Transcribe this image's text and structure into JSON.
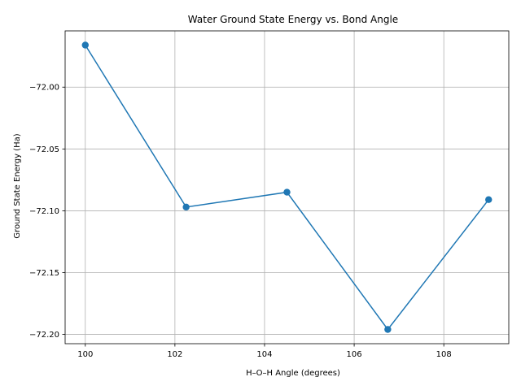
{
  "chart_data": {
    "type": "line",
    "title": "Water Ground State Energy vs. Bond Angle",
    "xlabel": "H–O–H Angle (degrees)",
    "ylabel": "Ground State Energy (Ha)",
    "x": [
      100.0,
      102.25,
      104.5,
      106.75,
      109.0
    ],
    "series": [
      {
        "values": [
          -71.966,
          -72.097,
          -72.085,
          -72.196,
          -72.091
        ]
      }
    ],
    "xlim": [
      99.55,
      109.45
    ],
    "ylim": [
      -72.2075,
      -71.9545
    ],
    "xticks": [
      100,
      102,
      104,
      106,
      108
    ],
    "xtick_labels": [
      "100",
      "102",
      "104",
      "106",
      "108"
    ],
    "yticks": [
      -72.2,
      -72.15,
      -72.1,
      -72.05,
      -72.0
    ],
    "ytick_labels": [
      "−72.20",
      "−72.15",
      "−72.10",
      "−72.05",
      "−72.00"
    ],
    "grid": true,
    "markers": "circle",
    "line_color": "#1f77b4"
  }
}
